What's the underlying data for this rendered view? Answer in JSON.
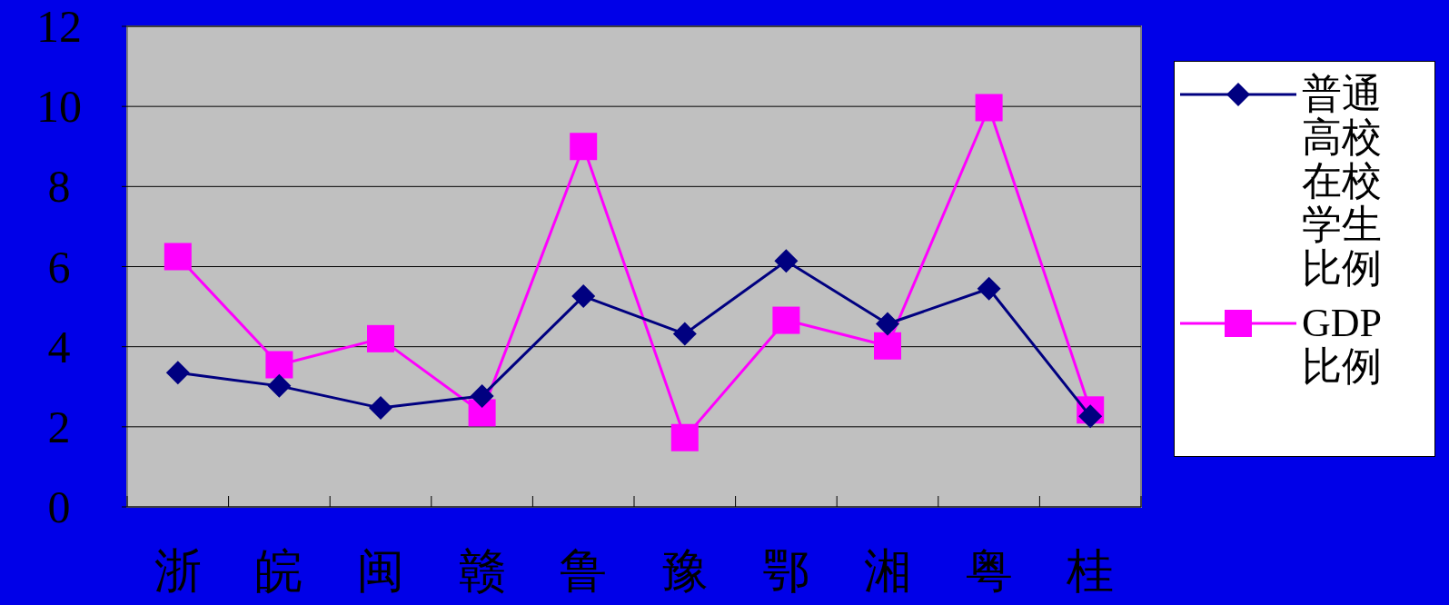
{
  "chart_data": {
    "type": "line",
    "categories": [
      "浙",
      "皖",
      "闽",
      "赣",
      "鲁",
      "豫",
      "鄂",
      "湘",
      "粤",
      "桂"
    ],
    "series": [
      {
        "name": "普通高校在校学生比例",
        "color": "#000080",
        "marker": "diamond",
        "values": [
          3.35,
          3.02,
          2.47,
          2.77,
          5.26,
          4.32,
          6.14,
          4.57,
          5.45,
          2.26
        ]
      },
      {
        "name": "GDP比例",
        "color": "#ff00ff",
        "marker": "square",
        "values": [
          6.25,
          3.55,
          4.2,
          2.35,
          9.0,
          1.73,
          4.66,
          4.02,
          9.97,
          2.42
        ]
      }
    ],
    "ylim": [
      0,
      12
    ],
    "yticks": [
      0,
      2,
      4,
      6,
      8,
      10,
      12
    ],
    "grid": "y",
    "legend": "right"
  }
}
